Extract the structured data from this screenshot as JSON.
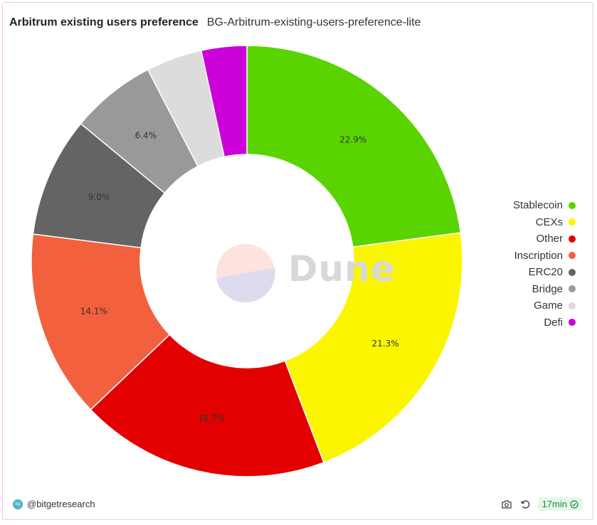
{
  "header": {
    "title": "Arbitrum existing users preference",
    "subtitle": "BG-Arbitrum-existing-users-preference-lite"
  },
  "watermark": {
    "text": "Dune"
  },
  "footer": {
    "author": "@bitgetresearch",
    "age": "17min"
  },
  "chart_data": {
    "type": "pie",
    "donut": true,
    "title": "Arbitrum existing users preference",
    "legend_position": "right",
    "slices": [
      {
        "label": "Stablecoin",
        "value": 22.9,
        "color": "#5ad400",
        "show_label": true
      },
      {
        "label": "CEXs",
        "value": 21.3,
        "color": "#fbf500",
        "show_label": true
      },
      {
        "label": "Other",
        "value": 18.7,
        "color": "#e20000",
        "show_label": true
      },
      {
        "label": "Inscription",
        "value": 14.1,
        "color": "#f2603e",
        "show_label": true
      },
      {
        "label": "ERC20",
        "value": 9.0,
        "color": "#646464",
        "show_label": true
      },
      {
        "label": "Bridge",
        "value": 6.4,
        "color": "#999999",
        "show_label": true
      },
      {
        "label": "Game",
        "value": 4.2,
        "color": "#dcdcdc",
        "show_label": false
      },
      {
        "label": "Defi",
        "value": 3.4,
        "color": "#cc00d8",
        "show_label": false
      }
    ]
  }
}
